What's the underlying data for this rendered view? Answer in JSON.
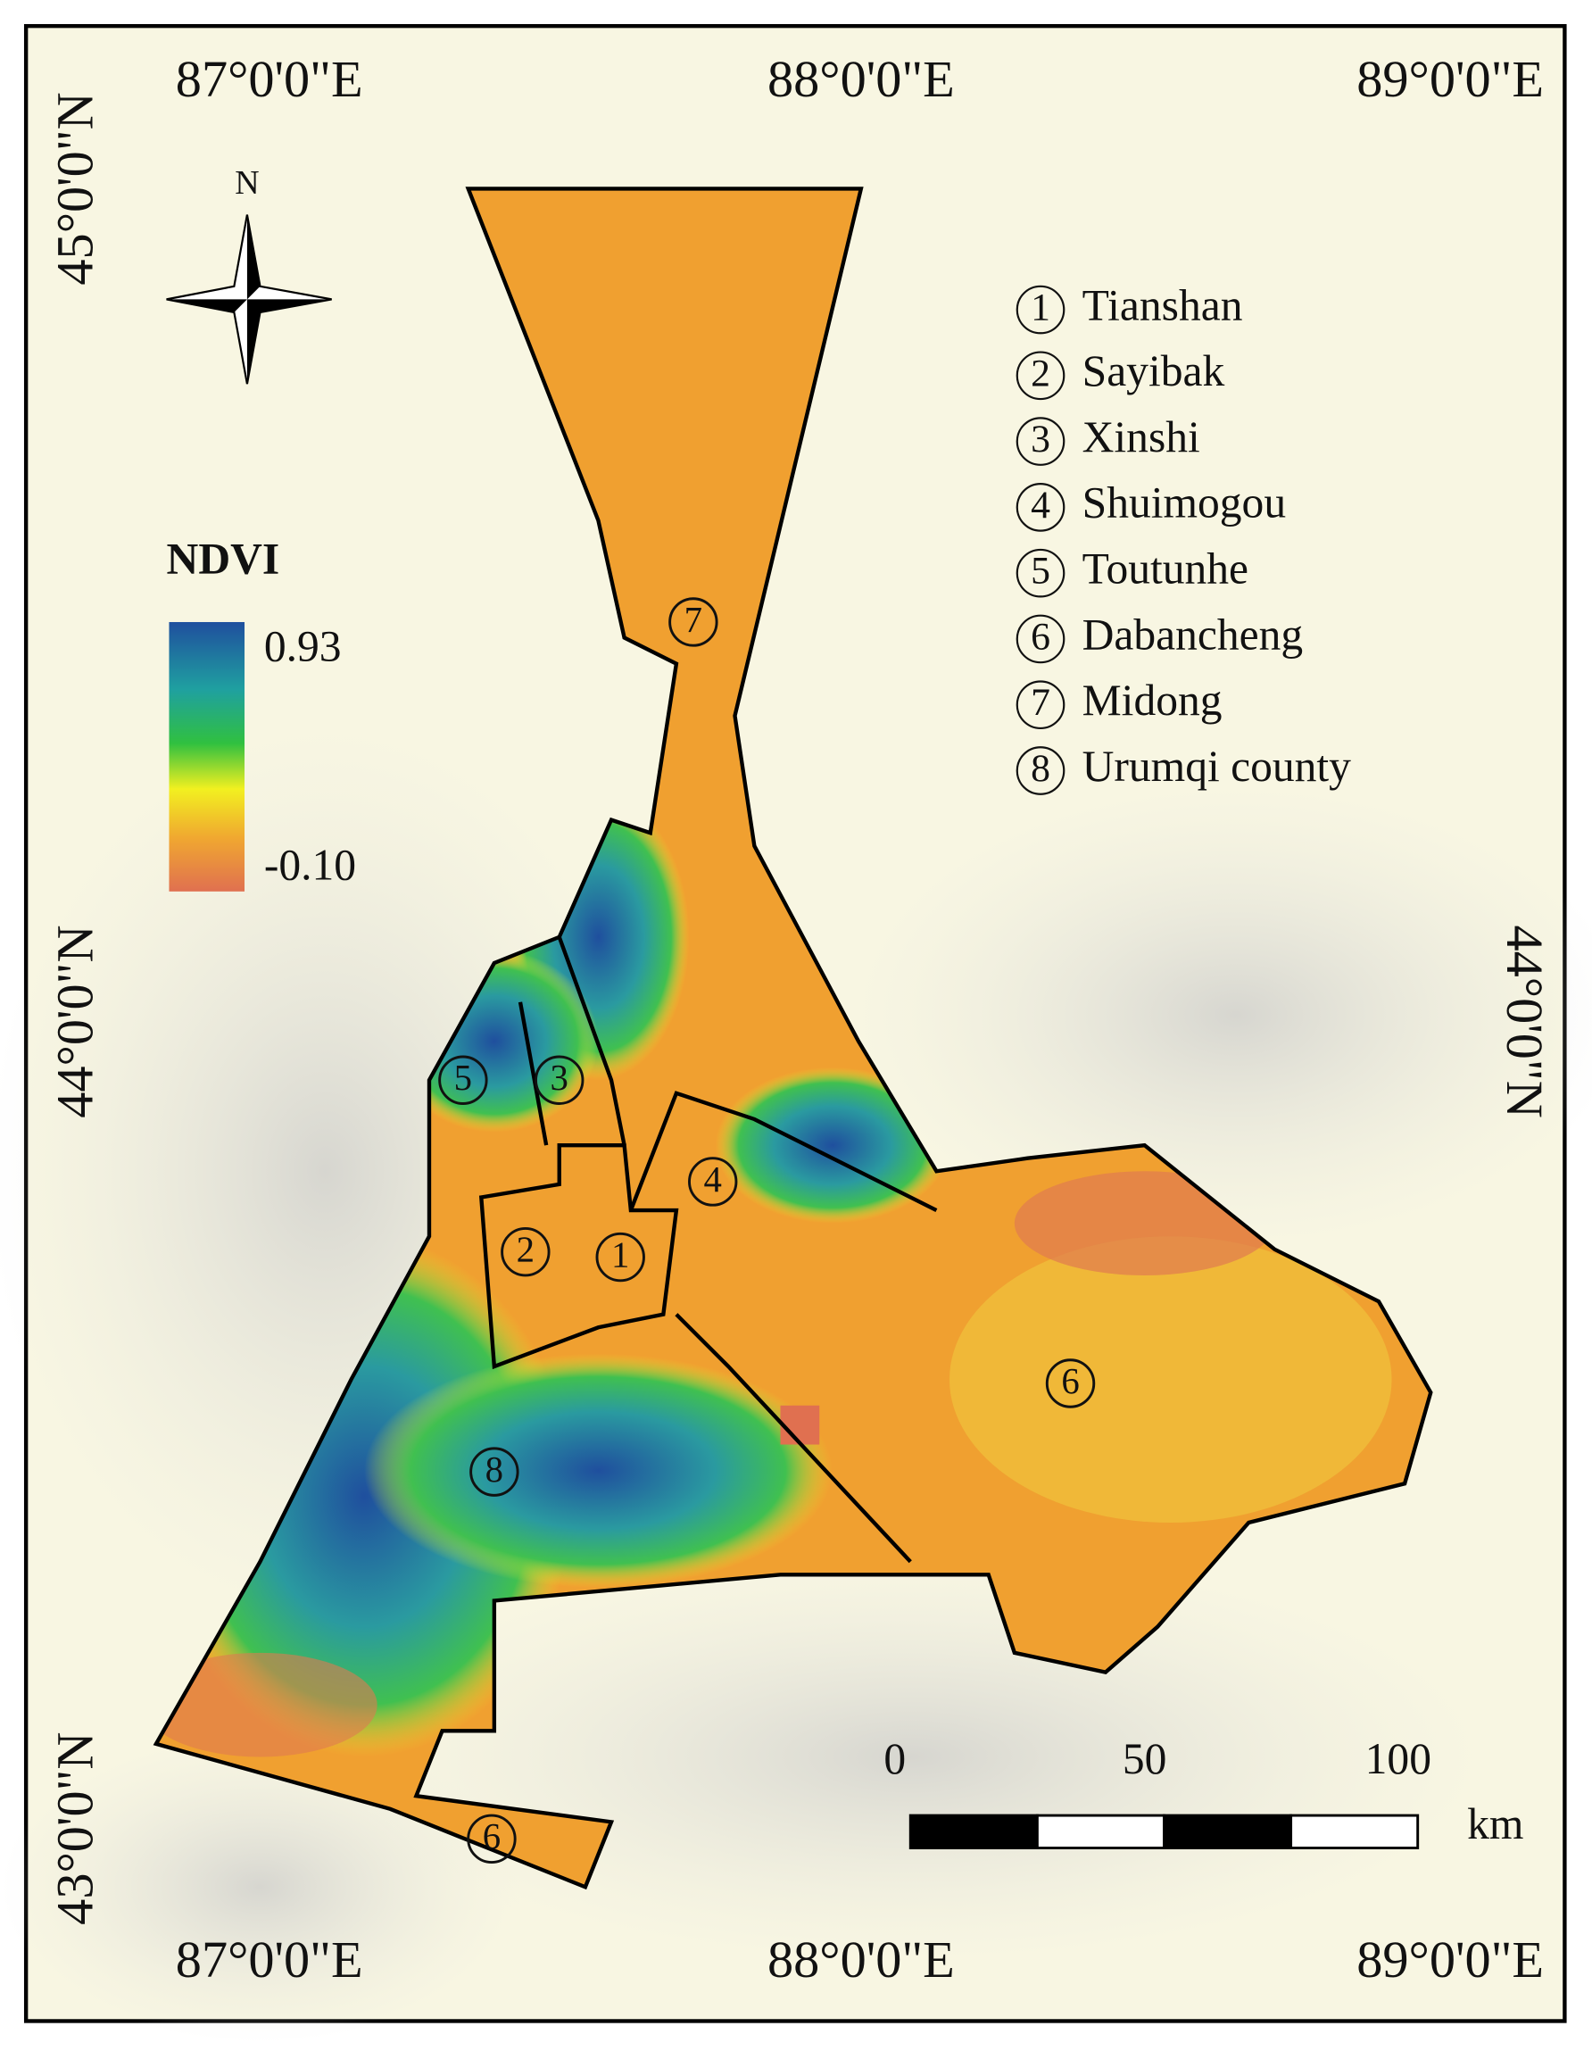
{
  "graticule": {
    "top": [
      "87°0'0\"E",
      "88°0'0\"E",
      "89°0'0\"E"
    ],
    "bottom": [
      "87°0'0\"E",
      "88°0'0\"E",
      "89°0'0\"E"
    ],
    "left": [
      "45°0'0\"N",
      "44°0'0\"N",
      "43°0'0\"N"
    ],
    "right": [
      "44°0'0\"N"
    ]
  },
  "north_arrow": "N",
  "legend": {
    "title": "NDVI",
    "max": "0.93",
    "min": "-0.10"
  },
  "districts": [
    {
      "number": "1",
      "name": "Tianshan"
    },
    {
      "number": "2",
      "name": "Sayibak"
    },
    {
      "number": "3",
      "name": "Xinshi"
    },
    {
      "number": "4",
      "name": "Shuimogou"
    },
    {
      "number": "5",
      "name": "Toutunhe"
    },
    {
      "number": "6",
      "name": "Dabancheng"
    },
    {
      "number": "7",
      "name": "Midong"
    },
    {
      "number": "8",
      "name": "Urumqi county"
    }
  ],
  "map_labels": [
    "7",
    "5",
    "3",
    "4",
    "2",
    "1",
    "6",
    "8",
    "6"
  ],
  "scale_bar": {
    "ticks": [
      "0",
      "50",
      "100"
    ],
    "unit": "km"
  }
}
